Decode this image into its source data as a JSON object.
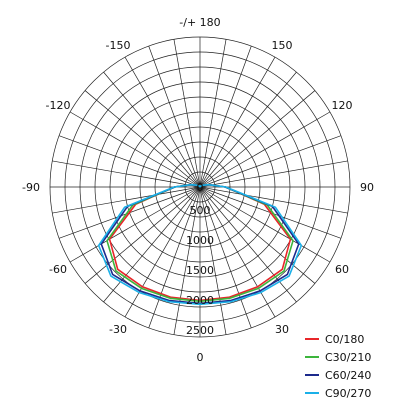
{
  "chart_data": {
    "type": "polar-line",
    "title": "",
    "angle_ticks": [
      "-/+ 180",
      "150",
      "120",
      "90",
      "60",
      "30",
      "0",
      "-30",
      "-60",
      "-90",
      "-120",
      "-150"
    ],
    "angle_tick_values": [
      180,
      150,
      120,
      90,
      60,
      30,
      0,
      -30,
      -60,
      -90,
      -120,
      -150
    ],
    "radial_ticks": [
      "0",
      "500",
      "1000",
      "1500",
      "2000",
      "2500"
    ],
    "radial_tick_values": [
      0,
      500,
      1000,
      1500,
      2000,
      2500
    ],
    "rlim": [
      0,
      2500
    ],
    "angle_grid_step_deg": 10,
    "radial_grid_step": 250,
    "grid": true,
    "legend_position": "bottom-right",
    "series": [
      {
        "name": "C0/180",
        "color": "#e8262a",
        "angles": [
          -180,
          -150,
          -120,
          -105,
          -90,
          -75,
          -60,
          -45,
          -30,
          -15,
          0,
          15,
          30,
          45,
          60,
          75,
          90,
          105,
          120,
          150,
          180
        ],
        "values": [
          5,
          20,
          60,
          150,
          430,
          1110,
          1740,
          1940,
          1920,
          1900,
          1890,
          1900,
          1920,
          1940,
          1740,
          1110,
          430,
          150,
          60,
          20,
          5
        ]
      },
      {
        "name": "C30/210",
        "color": "#3cb53c",
        "angles": [
          -180,
          -150,
          -120,
          -105,
          -90,
          -75,
          -60,
          -45,
          -30,
          -15,
          0,
          15,
          30,
          45,
          60,
          75,
          90,
          105,
          120,
          150,
          180
        ],
        "values": [
          5,
          20,
          60,
          150,
          420,
          1160,
          1790,
          1980,
          1950,
          1920,
          1905,
          1920,
          1950,
          1980,
          1790,
          1160,
          420,
          150,
          60,
          20,
          5
        ]
      },
      {
        "name": "C60/240",
        "color": "#1c2a8c",
        "angles": [
          -180,
          -150,
          -120,
          -105,
          -90,
          -75,
          -60,
          -45,
          -30,
          -15,
          0,
          15,
          30,
          45,
          60,
          75,
          90,
          105,
          120,
          150,
          180
        ],
        "values": [
          5,
          20,
          60,
          150,
          420,
          1250,
          1900,
          2060,
          2000,
          1960,
          1940,
          1960,
          2000,
          2060,
          1900,
          1250,
          420,
          150,
          60,
          20,
          5
        ]
      },
      {
        "name": "C90/270",
        "color": "#1ab0e8",
        "angles": [
          -180,
          -150,
          -120,
          -105,
          -90,
          -75,
          -60,
          -45,
          -30,
          -15,
          0,
          15,
          30,
          45,
          60,
          75,
          90,
          105,
          120,
          150,
          180
        ],
        "values": [
          5,
          20,
          60,
          150,
          430,
          1300,
          1950,
          2100,
          2030,
          1980,
          1955,
          1980,
          2030,
          2100,
          1950,
          1300,
          430,
          150,
          60,
          20,
          5
        ]
      }
    ]
  }
}
